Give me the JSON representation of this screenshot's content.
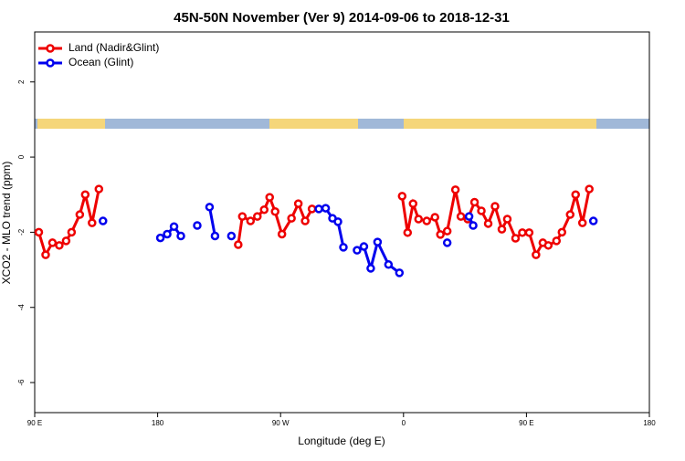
{
  "chart_data": {
    "type": "line",
    "title": "45N-50N November (Ver 9)   2014-09-06 to 2018-12-31",
    "x_label": "Longitude (deg E)",
    "y_label": "XCO2 - MLO trend (ppm)",
    "xlim": [
      90,
      540
    ],
    "xticks": [
      {
        "value": 90,
        "label": "90 E"
      },
      {
        "value": 180,
        "label": "180"
      },
      {
        "value": 270,
        "label": "90 W"
      },
      {
        "value": 360,
        "label": "0"
      },
      {
        "value": 450,
        "label": "90 E"
      },
      {
        "value": 540,
        "label": "180"
      }
    ],
    "ylim": [
      -6.8,
      3.33
    ],
    "yticks": [
      -6,
      -4,
      -2,
      0,
      2
    ],
    "legend": "upper left",
    "series": [
      {
        "name": "Land (Nadir&Glint)",
        "color": "#ee0000",
        "x": [
          93,
          98,
          103,
          108,
          113,
          117,
          123,
          127,
          132,
          137,
          null,
          239,
          242,
          248,
          253,
          258,
          262,
          266,
          271,
          278,
          283,
          288,
          293,
          null,
          359,
          363,
          367,
          371,
          377,
          383,
          387,
          392,
          398,
          402,
          407,
          412,
          417,
          422,
          427,
          432,
          436,
          442,
          447,
          452,
          457,
          462,
          466,
          472,
          476,
          482,
          486,
          491,
          496
        ],
        "values": [
          -2.0,
          -2.6,
          -2.28,
          -2.35,
          -2.23,
          -2.0,
          -1.53,
          -1.0,
          -1.75,
          -0.85,
          null,
          -2.33,
          -1.58,
          -1.7,
          -1.58,
          -1.4,
          -1.07,
          -1.45,
          -2.05,
          -1.63,
          -1.24,
          -1.7,
          -1.38,
          null,
          -1.04,
          -2.01,
          -1.24,
          -1.65,
          -1.7,
          -1.6,
          -2.06,
          -1.97,
          -0.87,
          -1.58,
          -1.65,
          -1.2,
          -1.43,
          -1.77,
          -1.31,
          -1.92,
          -1.65,
          -2.16,
          -2.01,
          -2.01,
          -2.6,
          -2.28,
          -2.35,
          -2.23,
          -2.0,
          -1.53,
          -1.0,
          -1.75,
          -0.85
        ]
      },
      {
        "name": "Ocean (Glint)",
        "color": "#0000ee",
        "x": [
          140,
          null,
          182,
          187,
          192,
          197,
          null,
          209,
          null,
          218,
          222,
          null,
          234,
          null,
          298,
          303,
          308,
          312,
          316,
          null,
          326,
          331,
          336,
          341,
          349,
          357,
          null,
          392,
          null,
          408,
          411,
          null,
          499
        ],
        "values": [
          -1.7,
          null,
          -2.15,
          -2.05,
          -1.85,
          -2.1,
          null,
          -1.82,
          null,
          -1.33,
          -2.1,
          null,
          -2.1,
          null,
          -1.38,
          -1.36,
          -1.63,
          -1.72,
          -2.4,
          null,
          -2.48,
          -2.38,
          -2.96,
          -2.26,
          -2.86,
          -3.08,
          null,
          -2.28,
          null,
          -1.58,
          -1.82,
          null,
          -1.7
        ]
      }
    ]
  }
}
